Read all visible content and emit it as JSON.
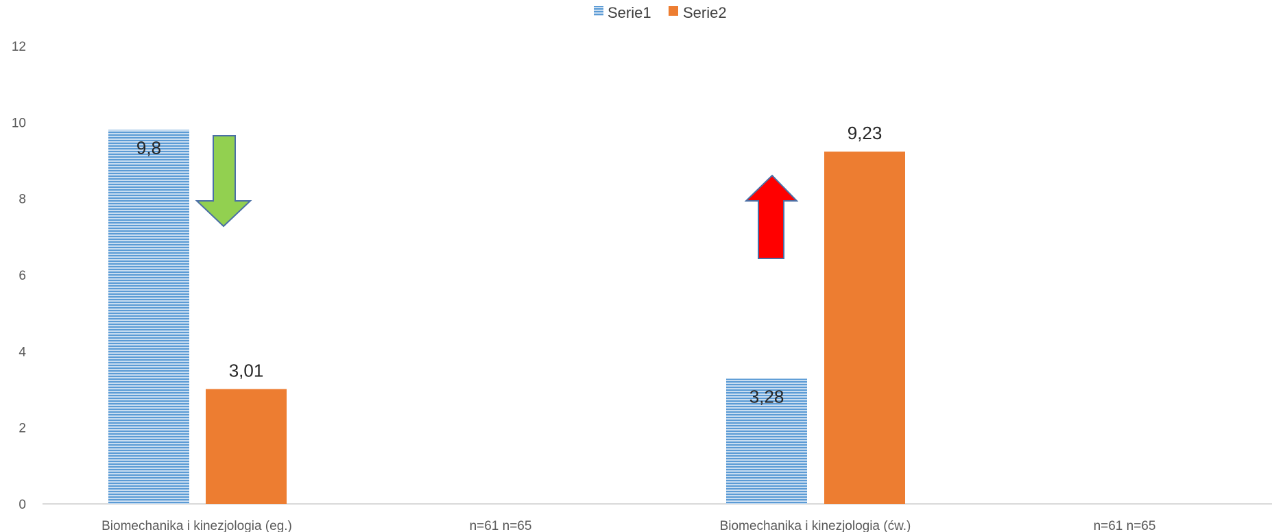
{
  "chart_data": {
    "type": "bar",
    "categories": [
      "Biomechanika i kinezjologia (eg.)",
      "n=61  n=65",
      "Biomechanika i kinezjologia (ćw.)",
      "n=61 n=65"
    ],
    "series": [
      {
        "name": "Serie1",
        "values": [
          9.8,
          null,
          3.28,
          null
        ],
        "labels": [
          "9,8",
          "",
          "3,28",
          ""
        ],
        "color": "#5B9BD5",
        "pattern": "horizontal-stripes"
      },
      {
        "name": "Serie2",
        "values": [
          3.01,
          null,
          9.23,
          null
        ],
        "labels": [
          "3,01",
          "",
          "9,23",
          ""
        ],
        "color": "#ED7D31"
      }
    ],
    "yticks": [
      "0",
      "2",
      "4",
      "6",
      "8",
      "10",
      "12"
    ],
    "ylim": [
      0,
      12
    ],
    "legend_position": "top",
    "grid": false,
    "annotations": [
      {
        "type": "arrow-down",
        "color": "#92D050",
        "category": 0
      },
      {
        "type": "arrow-up",
        "color": "#FF0000",
        "category": 2
      }
    ]
  }
}
